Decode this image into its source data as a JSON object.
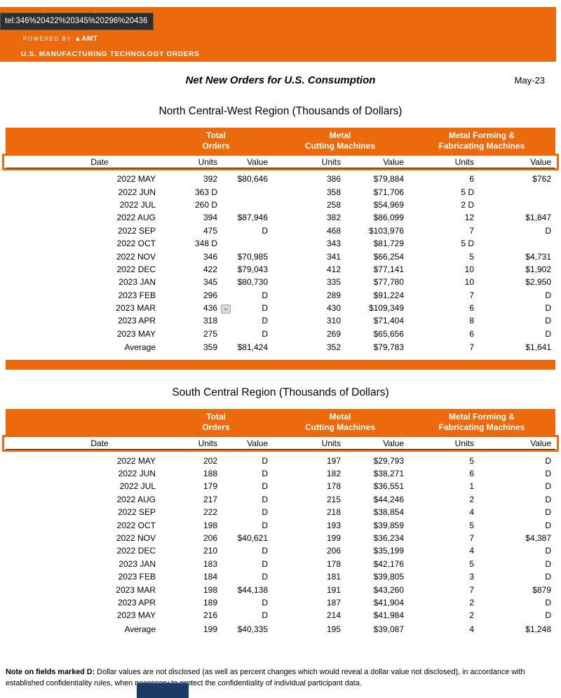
{
  "tooltip": {
    "text": "tel:346%20422%20345%20296%20436"
  },
  "banner": {
    "logo": "USMTO",
    "powered_by": "POWERED BY ",
    "amt": "▲AMT",
    "tagline": "U.S. MANUFACTURING TECHNOLOGY ORDERS"
  },
  "report": {
    "title": "Net New Orders for U.S. Consumption",
    "period": "May-23"
  },
  "accent_color": "#ED6A0C",
  "tables": [
    {
      "title": "North Central-West Region (Thousands of Dollars)",
      "group_headers": [
        [
          "Total",
          "Orders"
        ],
        [
          "Metal",
          "Cutting Machines"
        ],
        [
          "Metal Forming &",
          "Fabricating Machines"
        ]
      ],
      "col_headers": [
        "Date",
        "Units",
        "Value",
        "Units",
        "Value",
        "Units",
        "Value"
      ],
      "rows": [
        [
          "2022 MAY",
          "392",
          "$80,646",
          "386",
          "$79,884",
          "6",
          "$762"
        ],
        [
          "2022 JUN",
          "363 D",
          "",
          "358",
          "$71,706",
          "5 D",
          ""
        ],
        [
          "2022 JUL",
          "260 D",
          "",
          "258",
          "$54,969",
          "2 D",
          ""
        ],
        [
          "2022 AUG",
          "394",
          "$87,946",
          "382",
          "$86,099",
          "12",
          "$1,847"
        ],
        [
          "2022 SEP",
          "475",
          "D",
          "468",
          "$103,976",
          "7",
          "D"
        ],
        [
          "2022 OCT",
          "348 D",
          "",
          "343",
          "$81,729",
          "5 D",
          ""
        ],
        [
          "2022 NOV",
          "346",
          "$70,985",
          "341",
          "$66,254",
          "5",
          "$4,731"
        ],
        [
          "2022 DEC",
          "422",
          "$79,043",
          "412",
          "$77,141",
          "10",
          "$1,902"
        ],
        [
          "2023 JAN",
          "345",
          "$80,730",
          "335",
          "$77,780",
          "10",
          "$2,950"
        ],
        [
          "2023 FEB",
          "296",
          "D",
          "289",
          "$91,224",
          "7",
          "D"
        ],
        [
          "2023 MAR",
          "436",
          "D",
          "430",
          "$109,349",
          "6",
          "D"
        ],
        [
          "2023 APR",
          "318",
          "D",
          "310",
          "$71,404",
          "8",
          "D"
        ],
        [
          "2023 MAY",
          "275",
          "D",
          "269",
          "$65,656",
          "6",
          "D"
        ]
      ],
      "average": [
        "Average",
        "359",
        "$81,424",
        "352",
        "$79,783",
        "7",
        "$1,641"
      ],
      "annotation": {
        "row": 10,
        "col": 1,
        "icon": "dropdown-marker-icon",
        "glyph": "⌄"
      }
    },
    {
      "title": "South Central Region (Thousands of Dollars)",
      "group_headers": [
        [
          "Total",
          "Orders"
        ],
        [
          "Metal",
          "Cutting Machines"
        ],
        [
          "Metal Forming &",
          "Fabricating Machines"
        ]
      ],
      "col_headers": [
        "Date",
        "Units",
        "Value",
        "Units",
        "Value",
        "Units",
        "Value"
      ],
      "rows": [
        [
          "2022 MAY",
          "202",
          "D",
          "197",
          "$29,793",
          "5",
          "D"
        ],
        [
          "2022 JUN",
          "188",
          "D",
          "182",
          "$38,271",
          "6",
          "D"
        ],
        [
          "2022 JUL",
          "179",
          "D",
          "178",
          "$36,551",
          "1",
          "D"
        ],
        [
          "2022 AUG",
          "217",
          "D",
          "215",
          "$44,246",
          "2",
          "D"
        ],
        [
          "2022 SEP",
          "222",
          "D",
          "218",
          "$38,854",
          "4",
          "D"
        ],
        [
          "2022 OCT",
          "198",
          "D",
          "193",
          "$39,859",
          "5",
          "D"
        ],
        [
          "2022 NOV",
          "206",
          "$40,621",
          "199",
          "$36,234",
          "7",
          "$4,387"
        ],
        [
          "2022 DEC",
          "210",
          "D",
          "206",
          "$35,199",
          "4",
          "D"
        ],
        [
          "2023 JAN",
          "183",
          "D",
          "178",
          "$42,176",
          "5",
          "D"
        ],
        [
          "2023 FEB",
          "184",
          "D",
          "181",
          "$39,805",
          "3",
          "D"
        ],
        [
          "2023 MAR",
          "198",
          "$44,138",
          "191",
          "$43,260",
          "7",
          "$879"
        ],
        [
          "2023 APR",
          "189",
          "D",
          "187",
          "$41,904",
          "2",
          "D"
        ],
        [
          "2023 MAY",
          "216",
          "D",
          "214",
          "$41,984",
          "2",
          "D"
        ]
      ],
      "average": [
        "Average",
        "199",
        "$40,335",
        "195",
        "$39,087",
        "4",
        "$1,248"
      ]
    }
  ],
  "note": {
    "label": "Note on fields marked D:",
    "text": " Dollar values are not disclosed (as well as percent changes which would reveal a dollar value not disclosed), in accordance with established confidentiality rules, when necessary to protect the confidentiality of individual participant data."
  }
}
